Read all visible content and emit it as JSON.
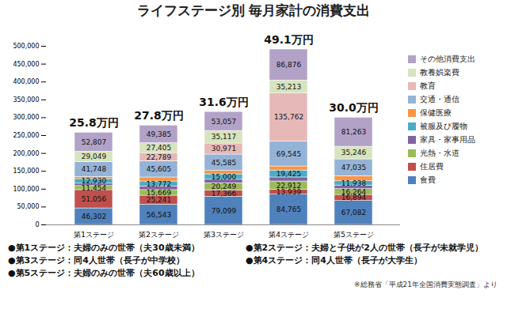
{
  "chart_data": {
    "type": "bar",
    "title": "ライフステージ別 毎月家計の消費支出",
    "categories": [
      "第1ステージ",
      "第2ステージ",
      "第3ステージ",
      "第4ステージ",
      "第5ステージ"
    ],
    "stacked": true,
    "data_labels": true,
    "grid": false,
    "legend": "right",
    "ylim": [
      0,
      500000
    ],
    "yticks": [
      0,
      {
        "value": 50000,
        "label": "50,000"
      },
      {
        "value": 100000,
        "label": "100,000"
      },
      {
        "value": 150000,
        "label": "150,000"
      },
      {
        "value": 200000,
        "label": "200,000"
      },
      {
        "value": 250000,
        "label": "250,000"
      },
      {
        "value": 300000,
        "label": "300,000"
      },
      {
        "value": 350000,
        "label": "350,000"
      },
      {
        "value": 400000,
        "label": "400,000"
      },
      {
        "value": 450000,
        "label": "450,000"
      },
      {
        "value": 500000,
        "label": "500,000"
      }
    ],
    "series": [
      {
        "name": "食費",
        "color": "#4f81bd",
        "values": [
          46302,
          56543,
          79099,
          84765,
          67082
        ],
        "value_labels": [
          "46,302",
          "56,543",
          "79,099",
          "84,765",
          "67,082"
        ]
      },
      {
        "name": "住居費",
        "color": "#c0504d",
        "values": [
          51056,
          25241,
          17366,
          13939,
          16894
        ],
        "value_labels": [
          "51,056",
          "25,241",
          "17,366",
          "13,939",
          "16,894"
        ]
      },
      {
        "name": "光熱・水道",
        "color": "#9bbb59",
        "values": [
          11454,
          15669,
          20249,
          22912,
          16264
        ],
        "value_labels": [
          "11,454",
          "15,669",
          "20,249",
          "22,912",
          "16,264"
        ]
      },
      {
        "name": "家具・家事用品",
        "color": "#8064a2",
        "values": [
          6600,
          10400,
          9800,
          11200,
          10000
        ],
        "value_labels": [
          null,
          null,
          null,
          null,
          null
        ]
      },
      {
        "name": "被服及び履物",
        "color": "#4bacc6",
        "values": [
          12930,
          13772,
          15000,
          19425,
          11938
        ],
        "value_labels": [
          "12,930",
          "13,772",
          "15,000",
          "19,425",
          "11,938"
        ]
      },
      {
        "name": "保健医療",
        "color": "#f79646",
        "values": [
          6050,
          11200,
          9800,
          11400,
          14300
        ],
        "value_labels": [
          null,
          null,
          null,
          null,
          null
        ]
      },
      {
        "name": "交通・通信",
        "color": "#95b3d7",
        "values": [
          41748,
          45605,
          45585,
          69545,
          47035
        ],
        "value_labels": [
          "41,748",
          "45,605",
          "45,585",
          "69,545",
          "47,035"
        ]
      },
      {
        "name": "教育",
        "color": "#e6b9b8",
        "values": [
          0,
          22789,
          30971,
          135762,
          0
        ],
        "value_labels": [
          null,
          "22,789",
          "30,971",
          "135,762",
          null
        ]
      },
      {
        "name": "教養娯楽費",
        "color": "#d7e4bd",
        "values": [
          29049,
          27405,
          35117,
          35213,
          35246
        ],
        "value_labels": [
          "29,049",
          "27,405",
          "35,117",
          "35,213",
          "35,246"
        ]
      },
      {
        "name": "その他消費支出",
        "color": "#b3a2c7",
        "values": [
          52807,
          49385,
          53057,
          86876,
          81263
        ],
        "value_labels": [
          "52,807",
          "49,385",
          "53,057",
          "86,876",
          "81,263"
        ]
      }
    ],
    "annotations": [
      "25.8万円",
      "27.8万円",
      "31.6万円",
      "49.1万円",
      "30.0万円"
    ],
    "notes": [
      "●第1ステージ：夫婦のみの世帯（夫30歳未満）",
      "●第2ステージ：夫婦と子供が2人の世帯（長子が未就学児）",
      "●第3ステージ：同4人世帯（長子が中学校）",
      "●第4ステージ：同4人世帯（長子が大学生）",
      "●第5ステージ：夫婦のみの世帯（夫60歳以上）"
    ],
    "source": "※総務省「平成21年全国消費実態調査」より"
  }
}
